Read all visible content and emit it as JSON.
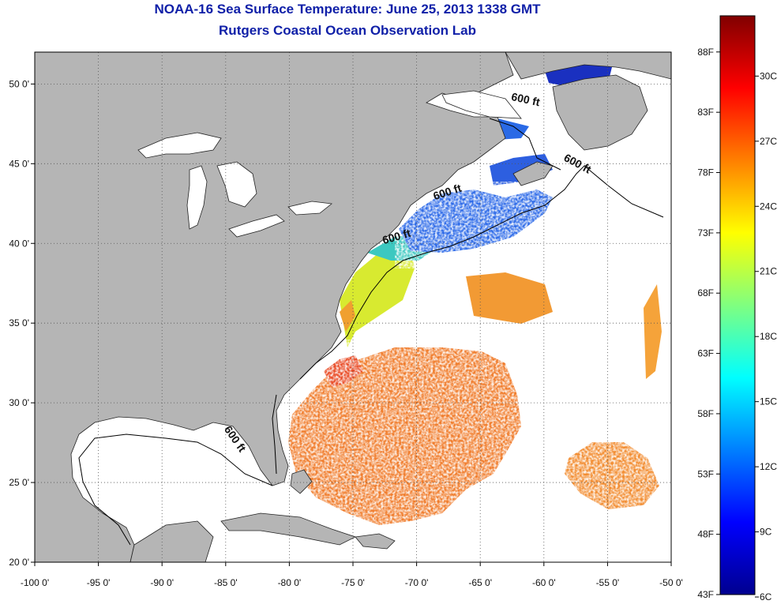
{
  "header": {
    "title": "NOAA-16 Sea Surface Temperature:  June 25, 2013 1338 GMT",
    "subtitle": "Rutgers Coastal Ocean Observation Lab"
  },
  "map": {
    "lon_range": [
      -100,
      -50
    ],
    "lat_range": [
      20,
      52
    ],
    "lon_ticks": [
      {
        "value": -100,
        "label": "-100 0'"
      },
      {
        "value": -95,
        "label": "-95 0'"
      },
      {
        "value": -90,
        "label": "-90 0'"
      },
      {
        "value": -85,
        "label": "-85 0'"
      },
      {
        "value": -80,
        "label": "-80 0'"
      },
      {
        "value": -75,
        "label": "-75 0'"
      },
      {
        "value": -70,
        "label": "-70 0'"
      },
      {
        "value": -65,
        "label": "-65 0'"
      },
      {
        "value": -60,
        "label": "-60 0'"
      },
      {
        "value": -55,
        "label": "-55 0'"
      },
      {
        "value": -50,
        "label": "-50 0'"
      }
    ],
    "lat_ticks": [
      {
        "value": 50,
        "label": "50 0'"
      },
      {
        "value": 45,
        "label": "45 0'"
      },
      {
        "value": 40,
        "label": "40 0'"
      },
      {
        "value": 35,
        "label": "35 0'"
      },
      {
        "value": 30,
        "label": "30 0'"
      },
      {
        "value": 25,
        "label": "25 0'"
      },
      {
        "value": 20,
        "label": "20 0'"
      }
    ],
    "depth_labels": [
      {
        "text": "600 ft",
        "lon": -61.5,
        "lat": 48.8,
        "rotate": 12
      },
      {
        "text": "600 ft",
        "lon": -57.5,
        "lat": 44.8,
        "rotate": 28
      },
      {
        "text": "600 ft",
        "lon": -67.5,
        "lat": 43.0,
        "rotate": -18
      },
      {
        "text": "600 ft",
        "lon": -71.5,
        "lat": 40.2,
        "rotate": -16
      },
      {
        "text": "600 ft",
        "lon": -84.5,
        "lat": 27.6,
        "rotate": 55
      }
    ],
    "colors": {
      "land": "#b5b5b5",
      "no_data": "#ffffff",
      "graticule": "#555555"
    }
  },
  "colorbar": {
    "min_f": 43,
    "max_f": 91,
    "fahrenheit_ticks": [
      "88F",
      "83F",
      "78F",
      "73F",
      "68F",
      "63F",
      "58F",
      "53F",
      "48F",
      "43F"
    ],
    "celsius_ticks": [
      "30C",
      "27C",
      "24C",
      "21C",
      "18C",
      "15C",
      "12C",
      "9C",
      "6C"
    ],
    "fahrenheit_values": [
      88,
      83,
      78,
      73,
      68,
      63,
      58,
      53,
      48,
      43
    ],
    "celsius_values": [
      30,
      27,
      24,
      21,
      18,
      15,
      12,
      9,
      6
    ],
    "colormap": [
      "#00008f",
      "#0000ff",
      "#00ffff",
      "#ffff00",
      "#ff0000",
      "#800000"
    ]
  }
}
